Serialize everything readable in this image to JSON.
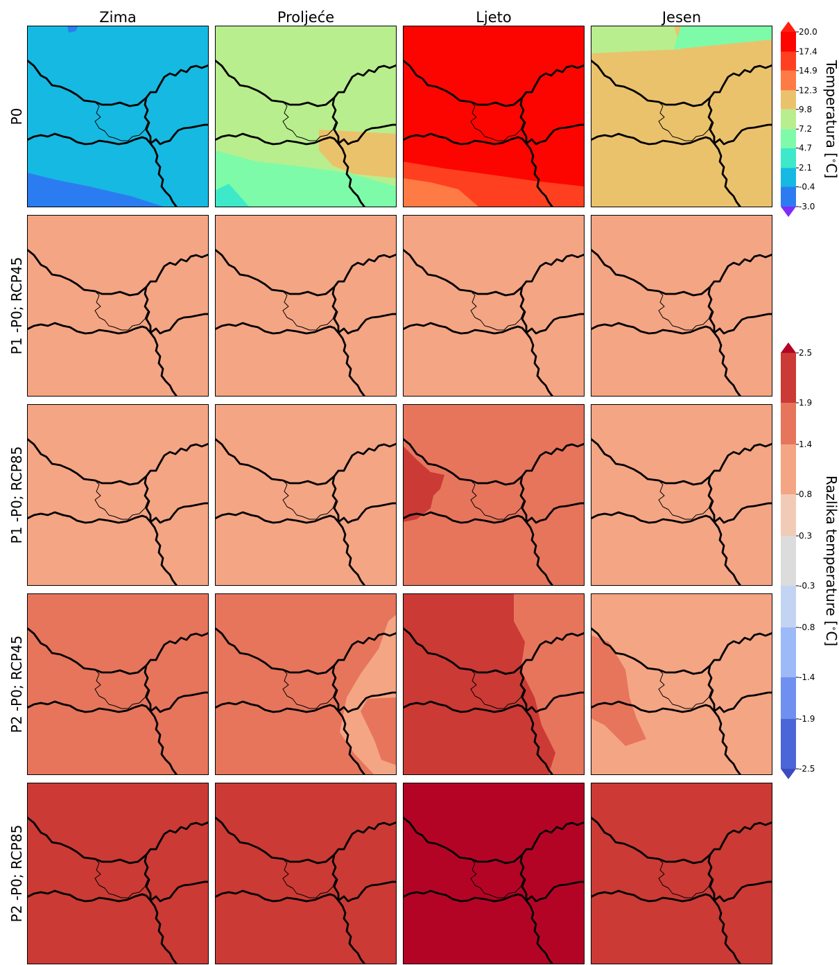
{
  "chart_data": {
    "type": "heatmap",
    "columns": [
      "Zima",
      "Proljeće",
      "Ljeto",
      "Jesen"
    ],
    "rows": [
      "P0",
      "P1 -P0; RCP45",
      "P1 -P0; RCP85",
      "P2 -P0; RCP45",
      "P2 -P0; RCP85"
    ],
    "row_scale": [
      "temperature",
      "difference",
      "difference",
      "difference",
      "difference"
    ],
    "panels": [
      [
        {
          "base": 0.8,
          "patches": [
            {
              "value": -1.8,
              "where": "bottom-left, top-left corner"
            }
          ]
        },
        {
          "base": 8.5,
          "patches": [
            {
              "value": 11.0,
              "where": "centre-right"
            },
            {
              "value": 6.0,
              "where": "bottom"
            },
            {
              "value": 3.4,
              "where": "bottom-left corner"
            }
          ]
        },
        {
          "base": 18.7,
          "patches": [
            {
              "value": 16.2,
              "where": "bottom"
            },
            {
              "value": 13.6,
              "where": "bottom-left"
            }
          ]
        },
        {
          "base": 11.0,
          "patches": [
            {
              "value": 8.5,
              "where": "top and centre"
            },
            {
              "value": 6.0,
              "where": "bottom"
            }
          ]
        }
      ],
      [
        {
          "base": 1.1,
          "patches": []
        },
        {
          "base": 1.1,
          "patches": []
        },
        {
          "base": 1.1,
          "patches": []
        },
        {
          "base": 1.1,
          "patches": []
        }
      ],
      [
        {
          "base": 1.1,
          "patches": []
        },
        {
          "base": 1.1,
          "patches": []
        },
        {
          "base": 1.65,
          "patches": [
            {
              "value": 2.2,
              "where": "left side patches"
            }
          ]
        },
        {
          "base": 1.1,
          "patches": []
        }
      ],
      [
        {
          "base": 1.65,
          "patches": []
        },
        {
          "base": 1.65,
          "patches": [
            {
              "value": 1.1,
              "where": "small right-edge patches"
            }
          ]
        },
        {
          "base": 2.2,
          "patches": [
            {
              "value": 1.65,
              "where": "right side"
            }
          ]
        },
        {
          "base": 1.1,
          "patches": [
            {
              "value": 1.65,
              "where": "left side"
            }
          ]
        }
      ],
      [
        {
          "base": 2.2,
          "patches": []
        },
        {
          "base": 2.2,
          "patches": []
        },
        {
          "base": 2.7,
          "patches": []
        },
        {
          "base": 2.2,
          "patches": []
        }
      ]
    ],
    "colorbars": [
      {
        "label": "Temperatura [$^\\circ$C]",
        "ticks": [
          "20.0",
          "17.4",
          "14.9",
          "12.3",
          "9.8",
          "7.2",
          "4.7",
          "2.1",
          "-0.4",
          "-3.0"
        ],
        "bounds": [
          -3.0,
          -0.4,
          2.1,
          4.7,
          7.2,
          9.8,
          12.3,
          14.9,
          17.4,
          20.0
        ],
        "colors": [
          "#2c7cf1",
          "#16b9e1",
          "#3de9c9",
          "#7dfba9",
          "#b8ee8d",
          "#ebc26c",
          "#ff7b45",
          "#ff4020",
          "#fc0500"
        ],
        "under_color": "#7f2cf8",
        "over_color": "#ff1e0f"
      },
      {
        "label": "Razlika temperature [$^\\circ$C]",
        "ticks": [
          "2.5",
          "1.9",
          "1.4",
          "0.8",
          "0.3",
          "-0.3",
          "-0.8",
          "-1.4",
          "-1.9",
          "-2.5"
        ],
        "bounds": [
          -2.5,
          -1.9,
          -1.4,
          -0.8,
          -0.3,
          0.3,
          0.8,
          1.4,
          1.9,
          2.5
        ],
        "colors": [
          "#4a66d8",
          "#6f90f0",
          "#9cb9f8",
          "#c3d4f3",
          "#dcdcdc",
          "#f2cbb6",
          "#f4a584",
          "#e6755c",
          "#cb3a34"
        ],
        "under_color": "#3b4cc0",
        "over_color": "#b40426"
      }
    ],
    "map_outline_color": "#000000"
  }
}
